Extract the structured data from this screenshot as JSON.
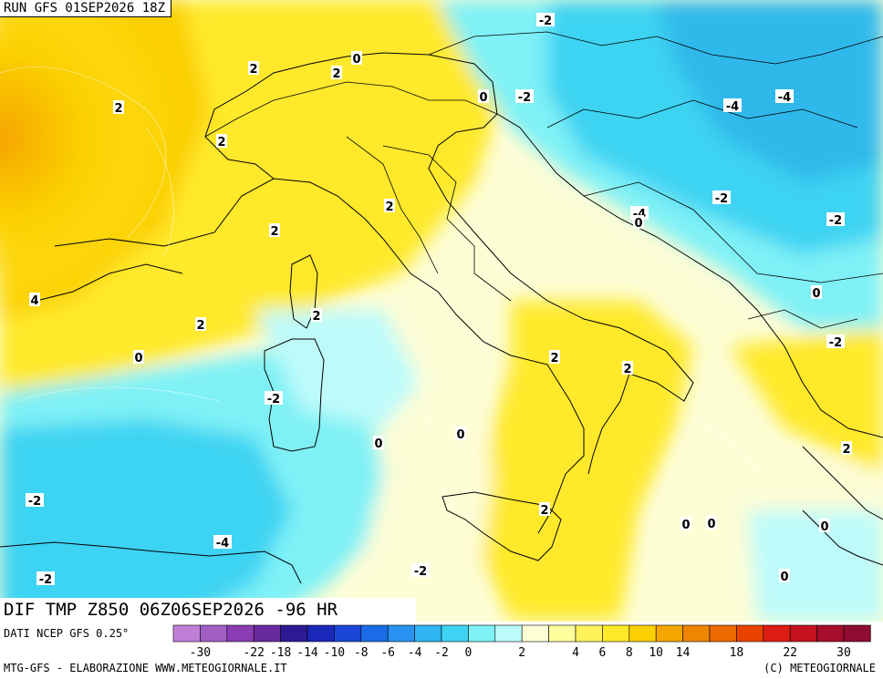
{
  "header": {
    "run": "RUN GFS 01SEP2026 18Z",
    "product": "DIF TMP Z850 06Z06SEP2026 -96 HR"
  },
  "footer": {
    "source": "DATI NCEP GFS 0.25°",
    "credit_left": "MTG-GFS - ELABORAZIONE WWW.METEOGIORNALE.IT",
    "credit_right": "(C) METEOGIORNALE"
  },
  "colors": {
    "warm_strong": "#f5a500",
    "warm": "#fbcf00",
    "mild_warm": "#ffe92a",
    "pale_warm": "#ffff9e",
    "neutral": "#fdfdd6",
    "pale_cool": "#bdfbfa",
    "cool": "#7ff1f6",
    "cold": "#3ed3f2",
    "colder": "#2db9ea"
  },
  "scale": {
    "colors": [
      "#c07fd6",
      "#a15ec4",
      "#8a3db3",
      "#6a2a9f",
      "#2c1a95",
      "#1a27b9",
      "#1b46d6",
      "#1a6de6",
      "#2992f0",
      "#2fb4f2",
      "#3ed3f2",
      "#7ff1f6",
      "#bdfbfa",
      "#fdfdd6",
      "#ffff9e",
      "#fff25a",
      "#ffe92a",
      "#fbcf00",
      "#f5a500",
      "#ee8600",
      "#ec6a00",
      "#e84400",
      "#dc1d14",
      "#c4131f",
      "#a40e2a",
      "#8f0b31"
    ],
    "tick_labels": [
      "-30",
      "-22",
      "-18",
      "-14",
      "-10",
      "-8",
      "-6",
      "-4",
      "-2",
      "0",
      "2",
      "4",
      "6",
      "8",
      "10",
      "14",
      "18",
      "22",
      "30"
    ]
  },
  "contour_labels": [
    "2",
    "2",
    "2",
    "0",
    "2",
    "0",
    "-2",
    "-2",
    "-4",
    "-4",
    "-2",
    "-4",
    "0",
    "-2",
    "2",
    "2",
    "2",
    "4",
    "2",
    "0",
    "0",
    "-2",
    "2",
    "2",
    "0",
    "0",
    "0",
    "-2",
    "2",
    "0",
    "0",
    "-2",
    "-4",
    "-2",
    "-2",
    "2",
    "0"
  ]
}
